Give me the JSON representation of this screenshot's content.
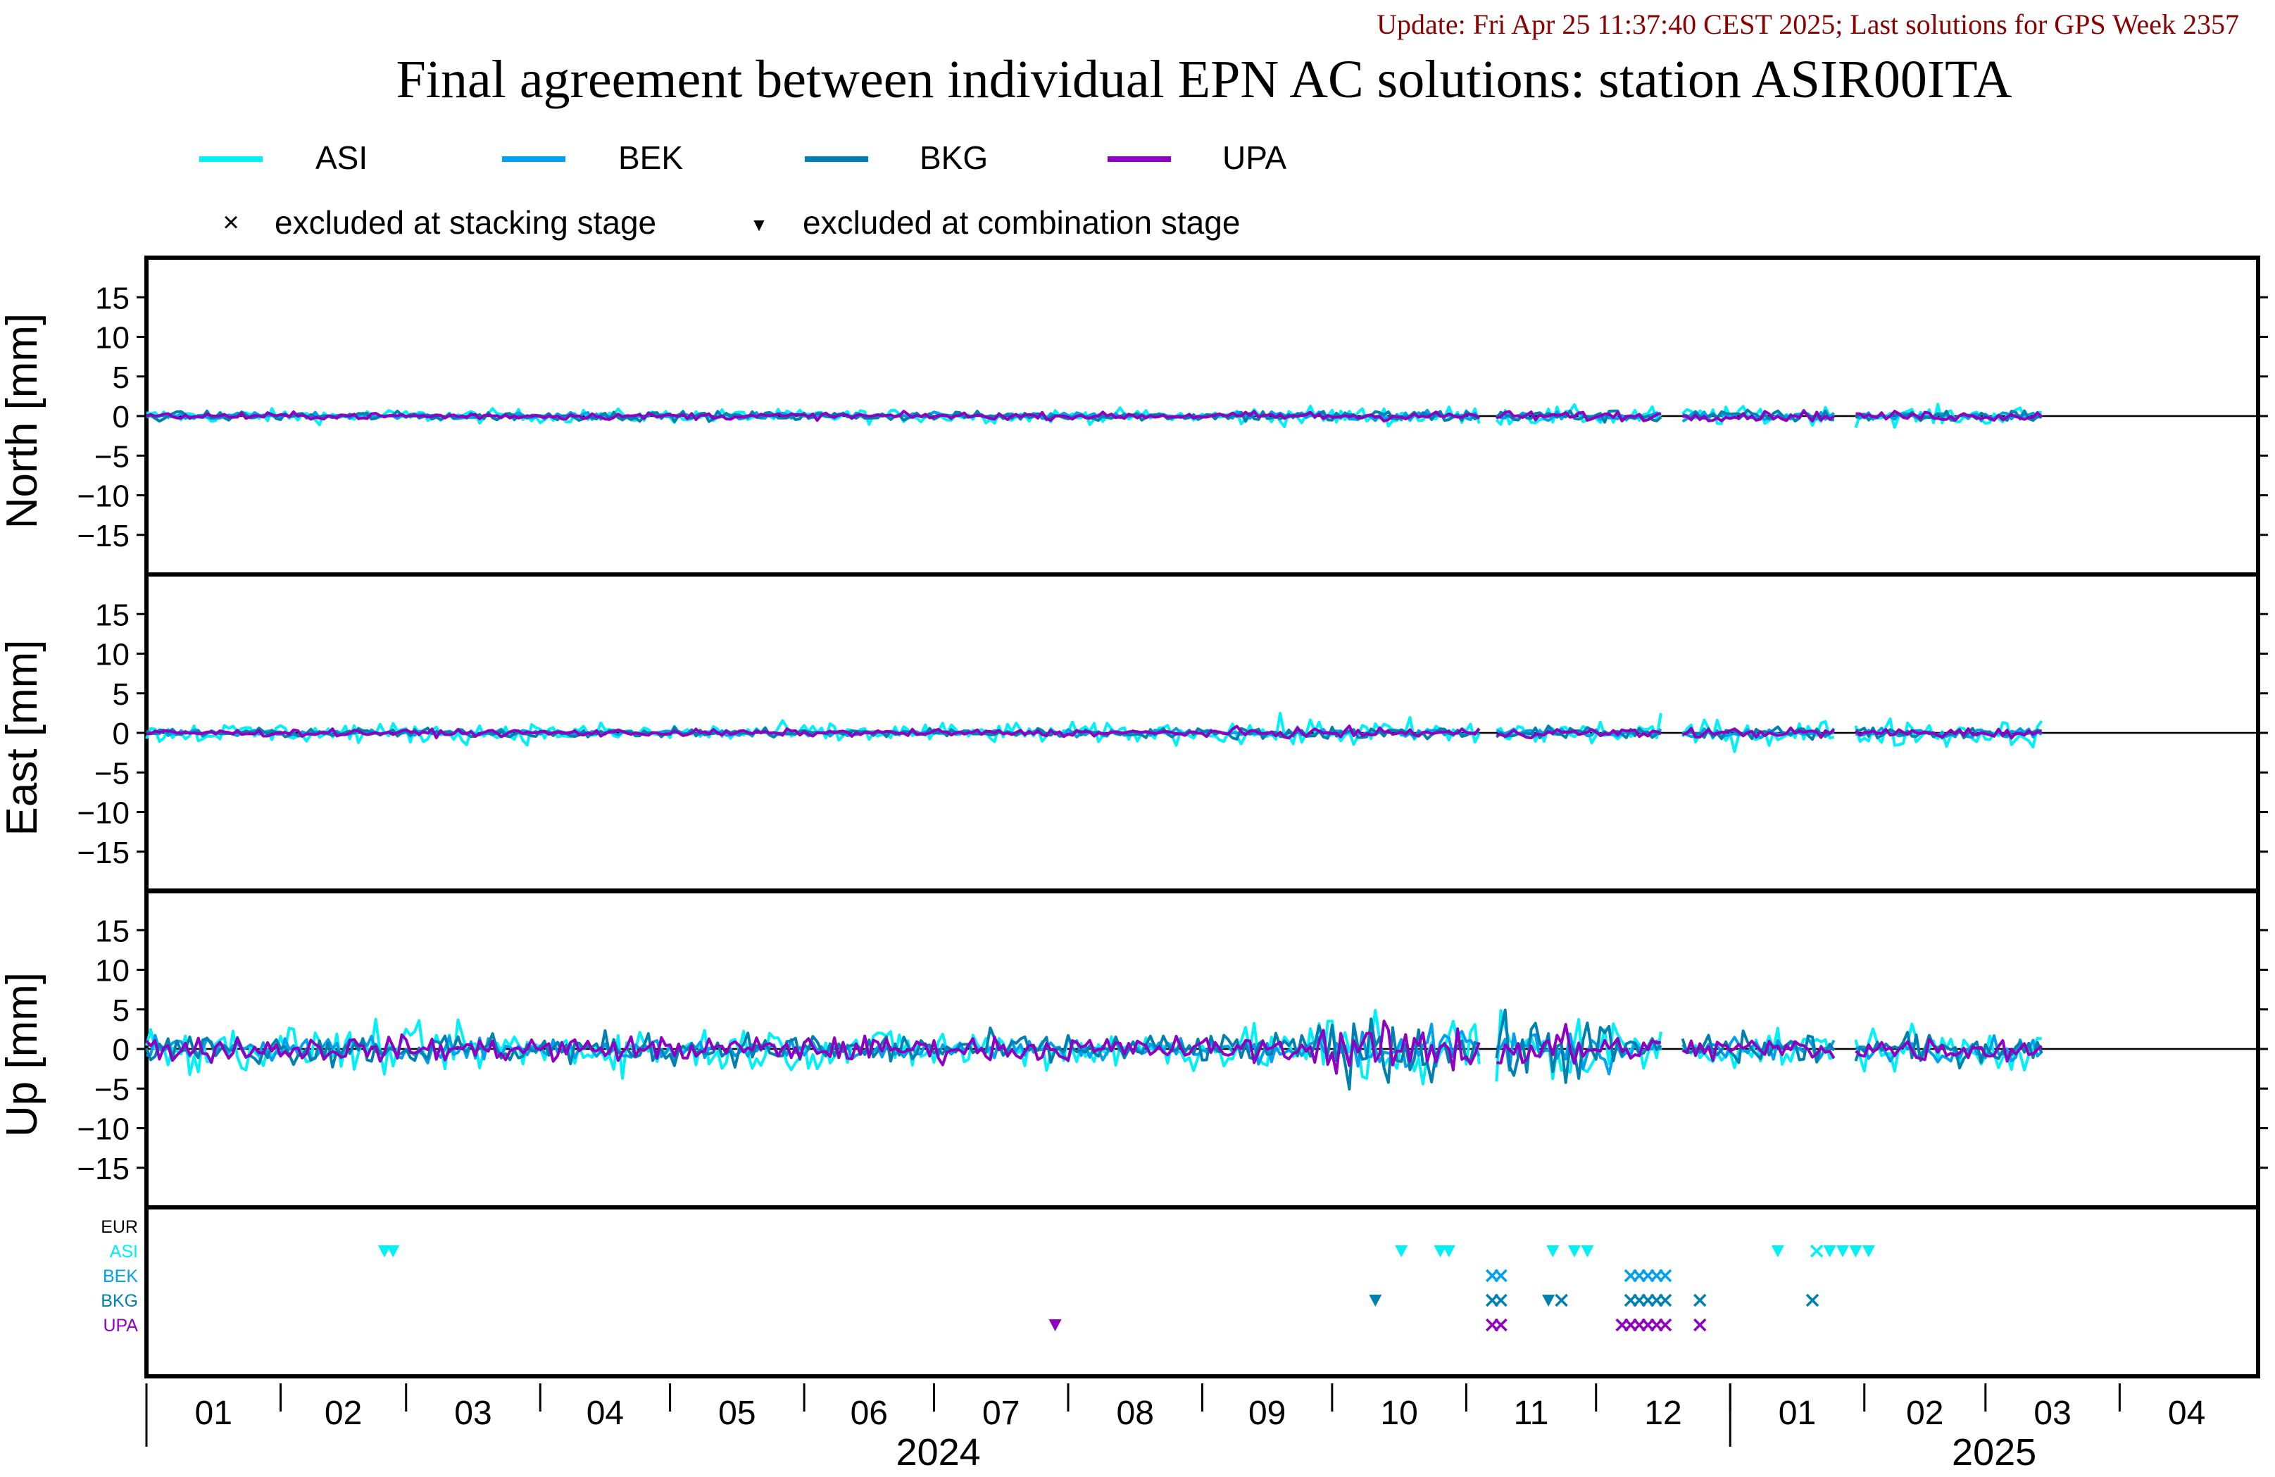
{
  "header": {
    "update_line": "Update: Fri Apr 25 11:37:40 CEST 2025; Last solutions for GPS Week 2357",
    "title": "Final agreement between individual EPN AC solutions: station ASIR00ITA"
  },
  "legend": {
    "series": [
      {
        "name": "ASI",
        "color": "#00f0f8"
      },
      {
        "name": "BEK",
        "color": "#00a0f0"
      },
      {
        "name": "BKG",
        "color": "#0080b0"
      },
      {
        "name": "UPA",
        "color": "#9000c0"
      }
    ],
    "markers": [
      {
        "symbol": "×",
        "label": "excluded at stacking stage"
      },
      {
        "symbol": "▼",
        "label": "excluded at combination stage"
      }
    ]
  },
  "chart_data": {
    "type": "line",
    "x_unit": "days since 2024-01-01",
    "xlim": [
      0,
      488
    ],
    "ylim": [
      -20,
      20
    ],
    "yticks": [
      15,
      10,
      5,
      0,
      -5,
      -10,
      -15
    ],
    "panels": [
      {
        "id": "north",
        "ylabel": "North [mm]"
      },
      {
        "id": "east",
        "ylabel": "East [mm]"
      },
      {
        "id": "up",
        "ylabel": "Up [mm]"
      }
    ],
    "x_months": [
      {
        "label": "01",
        "day": 0
      },
      {
        "label": "02",
        "day": 31
      },
      {
        "label": "03",
        "day": 60
      },
      {
        "label": "04",
        "day": 91
      },
      {
        "label": "05",
        "day": 121
      },
      {
        "label": "06",
        "day": 152
      },
      {
        "label": "07",
        "day": 182
      },
      {
        "label": "08",
        "day": 213
      },
      {
        "label": "09",
        "day": 244
      },
      {
        "label": "10",
        "day": 274
      },
      {
        "label": "11",
        "day": 305
      },
      {
        "label": "12",
        "day": 335
      },
      {
        "label": "01",
        "day": 366
      },
      {
        "label": "02",
        "day": 397
      },
      {
        "label": "03",
        "day": 425
      },
      {
        "label": "04",
        "day": 456
      }
    ],
    "x_years": [
      {
        "label": "2024",
        "day": 0,
        "end": 366
      },
      {
        "label": "2025",
        "day": 366,
        "end": 488
      }
    ],
    "data_end_day": 438,
    "gaps": [
      [
        309,
        311
      ],
      [
        351,
        354
      ],
      [
        391,
        394
      ]
    ],
    "series": [
      {
        "name": "ASI",
        "color": "#00f0f8",
        "amp": {
          "north": 0.6,
          "east": 0.9,
          "up": 2.0
        }
      },
      {
        "name": "BEK",
        "color": "#00a0f0",
        "amp": {
          "north": 0.3,
          "east": 0.3,
          "up": 1.0
        }
      },
      {
        "name": "BKG",
        "color": "#0080b0",
        "amp": {
          "north": 0.4,
          "east": 0.4,
          "up": 1.4
        }
      },
      {
        "name": "UPA",
        "color": "#9000c0",
        "amp": {
          "north": 0.3,
          "east": 0.3,
          "up": 1.1
        }
      }
    ],
    "exclusion_rows": [
      {
        "name": "EUR",
        "color": "#000000"
      },
      {
        "name": "ASI",
        "color": "#00f0f8"
      },
      {
        "name": "BEK",
        "color": "#00a0f0"
      },
      {
        "name": "BKG",
        "color": "#0080b0"
      },
      {
        "name": "UPA",
        "color": "#9000c0"
      }
    ],
    "exclusions": [
      {
        "row": "ASI",
        "day": 55,
        "mark": "tri"
      },
      {
        "row": "ASI",
        "day": 57,
        "mark": "tri"
      },
      {
        "row": "ASI",
        "day": 290,
        "mark": "tri"
      },
      {
        "row": "ASI",
        "day": 299,
        "mark": "tri"
      },
      {
        "row": "ASI",
        "day": 301,
        "mark": "tri"
      },
      {
        "row": "ASI",
        "day": 325,
        "mark": "tri"
      },
      {
        "row": "ASI",
        "day": 330,
        "mark": "tri"
      },
      {
        "row": "ASI",
        "day": 333,
        "mark": "tri"
      },
      {
        "row": "ASI",
        "day": 377,
        "mark": "tri"
      },
      {
        "row": "ASI",
        "day": 386,
        "mark": "x"
      },
      {
        "row": "ASI",
        "day": 389,
        "mark": "tri"
      },
      {
        "row": "ASI",
        "day": 392,
        "mark": "tri"
      },
      {
        "row": "ASI",
        "day": 395,
        "mark": "tri"
      },
      {
        "row": "ASI",
        "day": 398,
        "mark": "tri"
      },
      {
        "row": "BEK",
        "day": 311,
        "mark": "x"
      },
      {
        "row": "BEK",
        "day": 313,
        "mark": "x"
      },
      {
        "row": "BEK",
        "day": 343,
        "mark": "x"
      },
      {
        "row": "BEK",
        "day": 345,
        "mark": "x"
      },
      {
        "row": "BEK",
        "day": 347,
        "mark": "x"
      },
      {
        "row": "BEK",
        "day": 349,
        "mark": "x"
      },
      {
        "row": "BEK",
        "day": 351,
        "mark": "x"
      },
      {
        "row": "BKG",
        "day": 284,
        "mark": "tri"
      },
      {
        "row": "BKG",
        "day": 311,
        "mark": "x"
      },
      {
        "row": "BKG",
        "day": 313,
        "mark": "x"
      },
      {
        "row": "BKG",
        "day": 324,
        "mark": "tri"
      },
      {
        "row": "BKG",
        "day": 327,
        "mark": "x"
      },
      {
        "row": "BKG",
        "day": 343,
        "mark": "x"
      },
      {
        "row": "BKG",
        "day": 345,
        "mark": "x"
      },
      {
        "row": "BKG",
        "day": 347,
        "mark": "x"
      },
      {
        "row": "BKG",
        "day": 349,
        "mark": "x"
      },
      {
        "row": "BKG",
        "day": 351,
        "mark": "x"
      },
      {
        "row": "BKG",
        "day": 359,
        "mark": "x"
      },
      {
        "row": "BKG",
        "day": 385,
        "mark": "x"
      },
      {
        "row": "UPA",
        "day": 210,
        "mark": "tri"
      },
      {
        "row": "UPA",
        "day": 311,
        "mark": "x"
      },
      {
        "row": "UPA",
        "day": 313,
        "mark": "x"
      },
      {
        "row": "UPA",
        "day": 341,
        "mark": "x"
      },
      {
        "row": "UPA",
        "day": 343,
        "mark": "x"
      },
      {
        "row": "UPA",
        "day": 345,
        "mark": "x"
      },
      {
        "row": "UPA",
        "day": 347,
        "mark": "x"
      },
      {
        "row": "UPA",
        "day": 349,
        "mark": "x"
      },
      {
        "row": "UPA",
        "day": 351,
        "mark": "x"
      },
      {
        "row": "UPA",
        "day": 359,
        "mark": "x"
      }
    ]
  }
}
